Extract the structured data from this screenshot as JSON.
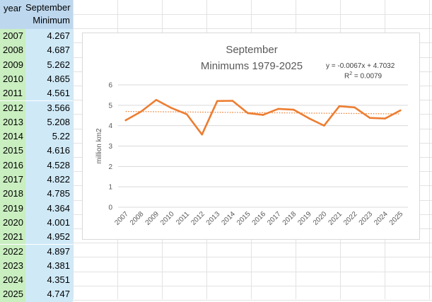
{
  "sheet": {
    "header_year": "year",
    "header_sept_line1": "September",
    "header_sept_line2": "Minimum",
    "rows": [
      {
        "year": "2007",
        "value": "4.267"
      },
      {
        "year": "2008",
        "value": "4.687"
      },
      {
        "year": "2009",
        "value": "5.262"
      },
      {
        "year": "2010",
        "value": "4.865"
      },
      {
        "year": "2011",
        "value": "4.561"
      },
      {
        "year": "2012",
        "value": "3.566"
      },
      {
        "year": "2013",
        "value": "5.208"
      },
      {
        "year": "2014",
        "value": "5.22"
      },
      {
        "year": "2015",
        "value": "4.616"
      },
      {
        "year": "2016",
        "value": "4.528"
      },
      {
        "year": "2017",
        "value": "4.822"
      },
      {
        "year": "2018",
        "value": "4.785"
      },
      {
        "year": "2019",
        "value": "4.364"
      },
      {
        "year": "2020",
        "value": "4.001"
      },
      {
        "year": "2021",
        "value": "4.952"
      },
      {
        "year": "2022",
        "value": "4.897"
      },
      {
        "year": "2023",
        "value": "4.381"
      },
      {
        "year": "2024",
        "value": "4.351"
      },
      {
        "year": "2025",
        "value": "4.747"
      }
    ]
  },
  "chart_data": {
    "type": "line",
    "title_line1": "September",
    "title_line2": "Minimums 1979-2025",
    "ylabel": "million km2",
    "xlabel": "",
    "ylim": [
      0,
      6
    ],
    "yticks": [
      "0",
      "1",
      "2",
      "3",
      "4",
      "5",
      "6"
    ],
    "categories": [
      "2007",
      "2008",
      "2009",
      "2010",
      "2011",
      "2012",
      "2013",
      "2014",
      "2015",
      "2016",
      "2017",
      "2018",
      "2019",
      "2020",
      "2021",
      "2022",
      "2023",
      "2024",
      "2025"
    ],
    "values": [
      4.267,
      4.687,
      5.262,
      4.865,
      4.561,
      3.566,
      5.208,
      5.22,
      4.616,
      4.528,
      4.822,
      4.785,
      4.364,
      4.001,
      4.952,
      4.897,
      4.381,
      4.351,
      4.747
    ],
    "trendline": {
      "slope": -0.0067,
      "intercept": 4.7032,
      "equation": "y = -0.0067x + 4.7032",
      "r2_label": "R",
      "r2_value": " = 0.0079"
    },
    "grid": true,
    "legend": "none",
    "line_color": "#ed7d31",
    "trend_color": "#ed7d31",
    "grid_color": "#d9d9d9"
  }
}
